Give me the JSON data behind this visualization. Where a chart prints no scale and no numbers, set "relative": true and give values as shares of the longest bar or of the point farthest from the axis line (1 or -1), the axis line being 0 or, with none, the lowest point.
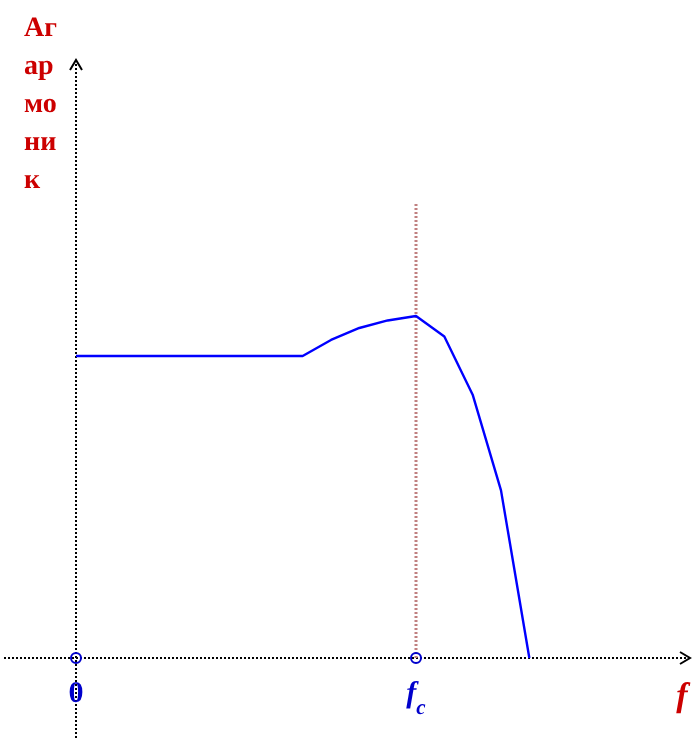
{
  "chart_data": {
    "type": "line",
    "relative": true,
    "ylabel": "Агармоник",
    "xlabel": "f",
    "categories": [
      "0",
      null,
      null,
      null,
      null,
      null,
      null,
      null,
      null,
      null,
      null,
      null,
      "f$_{c}$",
      null,
      null,
      null,
      null,
      null,
      null,
      null,
      null,
      null
    ],
    "series": [
      {
        "color": "#0000ff",
        "values": [
          0.883,
          0.883,
          0.883,
          0.883,
          0.883,
          0.883,
          0.883,
          0.883,
          0.883,
          0.93,
          0.965,
          0.987,
          1.0,
          0.94,
          0.77,
          0.49,
          0,
          null,
          null,
          null,
          null,
          null
        ]
      }
    ],
    "ref_lines": [
      {
        "axis": "x",
        "value": "f$_{c}$",
        "color": "#c08080",
        "line_style": "dotted"
      }
    ],
    "marker": "none",
    "line_style": "solid"
  }
}
